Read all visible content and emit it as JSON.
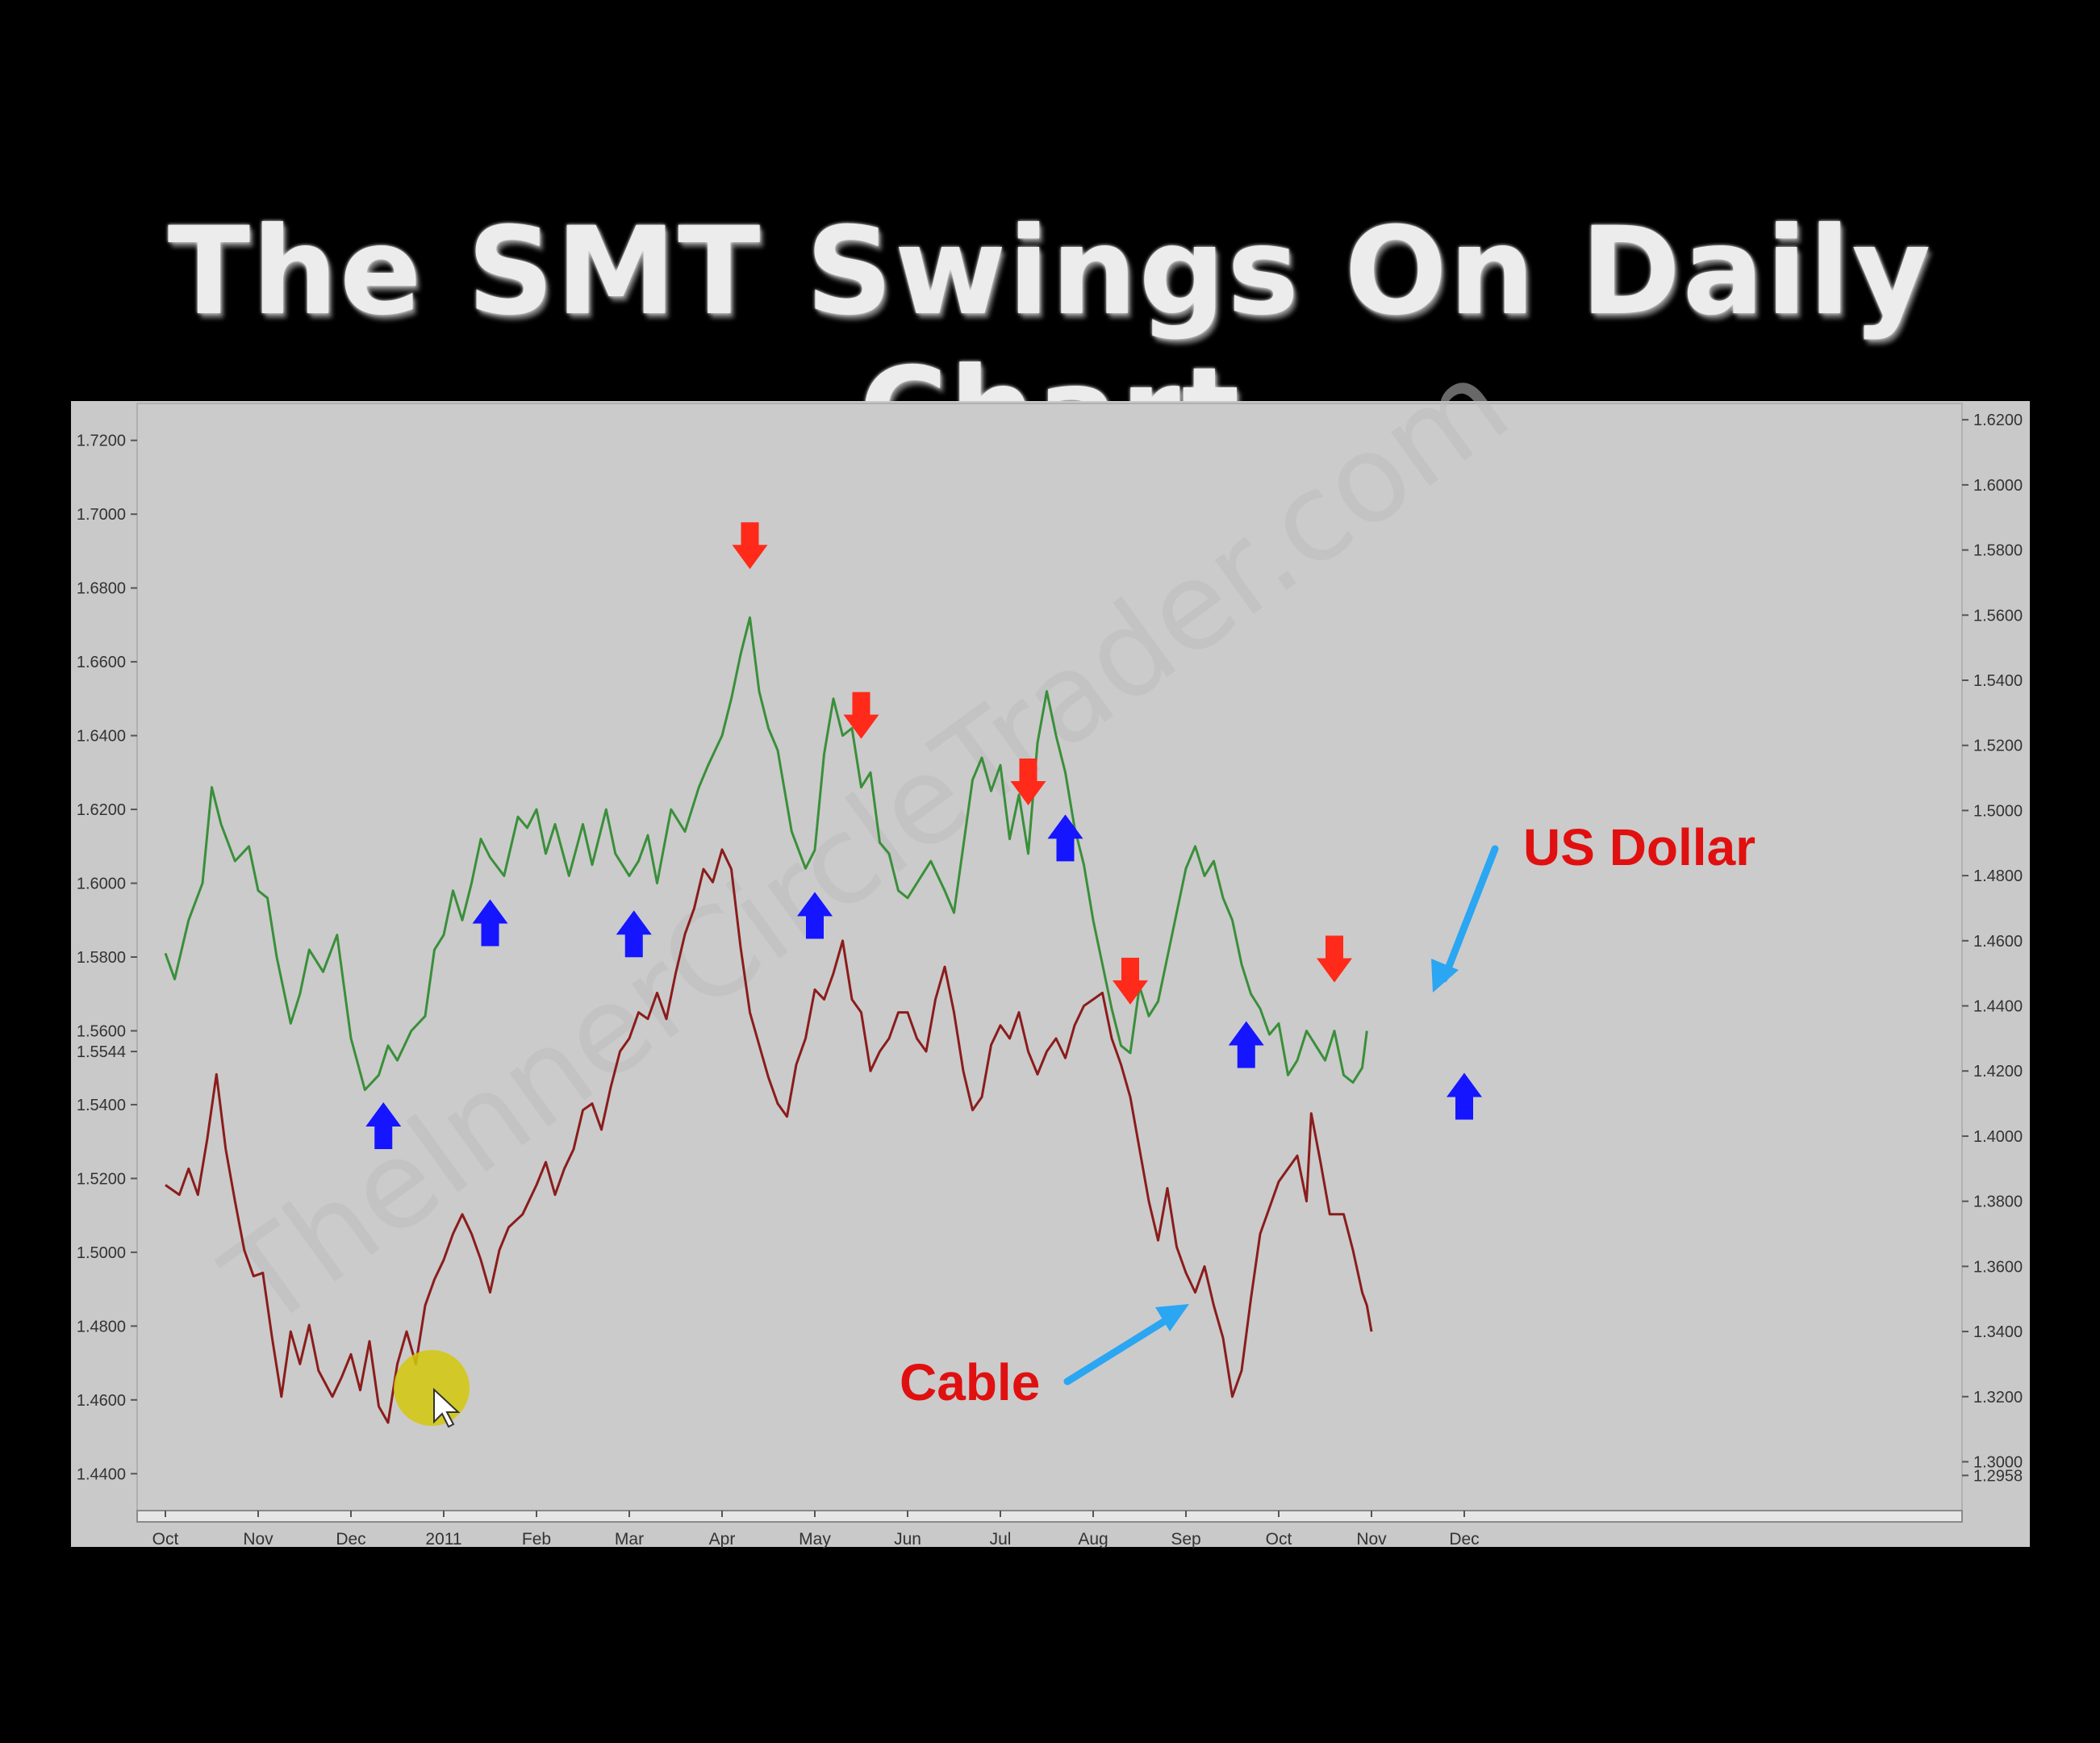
{
  "slide": {
    "title": "The SMT Swings On Daily Chart",
    "watermark": "TheInnerCircleTrader.com"
  },
  "colors": {
    "background": "#000000",
    "panel": "#c9c9c9",
    "usd_line": "#3a8f3a",
    "cable_line": "#8b1c1c",
    "down_arrow": "#ff2a1a",
    "up_arrow": "#1515ff",
    "callout_arrow": "#2aa6f2",
    "callout_text": "#e01010",
    "cursor_highlight": "#d4c80a"
  },
  "chart_data": {
    "type": "line",
    "x_tick_labels": [
      "Oct",
      "Nov",
      "Dec",
      "2011",
      "Feb",
      "Mar",
      "Apr",
      "May",
      "Jun",
      "Jul",
      "Aug",
      "Sep",
      "Oct",
      "Nov",
      "Dec"
    ],
    "left_axis": {
      "ylim": [
        1.43,
        1.73
      ],
      "ticks": [
        "1.7200",
        "1.7000",
        "1.6800",
        "1.6600",
        "1.6400",
        "1.6200",
        "1.6000",
        "1.5800",
        "1.5600",
        "1.5544",
        "1.5400",
        "1.5200",
        "1.5000",
        "1.4800",
        "1.4600",
        "1.4400"
      ]
    },
    "right_axis": {
      "ylim": [
        1.285,
        1.625
      ],
      "ticks": [
        "1.6200",
        "1.6000",
        "1.5800",
        "1.5600",
        "1.5400",
        "1.5200",
        "1.5000",
        "1.4800",
        "1.4600",
        "1.4400",
        "1.4200",
        "1.4000",
        "1.3800",
        "1.3600",
        "1.3400",
        "1.3200",
        "1.3000",
        "1.2958"
      ]
    },
    "series": [
      {
        "name": "US Dollar",
        "axis": "left",
        "color": "#3a8f3a",
        "points": [
          [
            0,
            1.581
          ],
          [
            0.1,
            1.574
          ],
          [
            0.25,
            1.59
          ],
          [
            0.4,
            1.6
          ],
          [
            0.5,
            1.626
          ],
          [
            0.6,
            1.616
          ],
          [
            0.75,
            1.606
          ],
          [
            0.9,
            1.61
          ],
          [
            1.0,
            1.598
          ],
          [
            1.1,
            1.596
          ],
          [
            1.2,
            1.58
          ],
          [
            1.35,
            1.562
          ],
          [
            1.45,
            1.57
          ],
          [
            1.55,
            1.582
          ],
          [
            1.7,
            1.576
          ],
          [
            1.85,
            1.586
          ],
          [
            2.0,
            1.558
          ],
          [
            2.15,
            1.544
          ],
          [
            2.3,
            1.548
          ],
          [
            2.4,
            1.556
          ],
          [
            2.5,
            1.552
          ],
          [
            2.65,
            1.56
          ],
          [
            2.8,
            1.564
          ],
          [
            2.9,
            1.582
          ],
          [
            3.0,
            1.586
          ],
          [
            3.1,
            1.598
          ],
          [
            3.2,
            1.59
          ],
          [
            3.3,
            1.6
          ],
          [
            3.4,
            1.612
          ],
          [
            3.5,
            1.607
          ],
          [
            3.65,
            1.602
          ],
          [
            3.8,
            1.618
          ],
          [
            3.9,
            1.615
          ],
          [
            4.0,
            1.62
          ],
          [
            4.1,
            1.608
          ],
          [
            4.2,
            1.616
          ],
          [
            4.35,
            1.602
          ],
          [
            4.5,
            1.616
          ],
          [
            4.6,
            1.605
          ],
          [
            4.75,
            1.62
          ],
          [
            4.85,
            1.608
          ],
          [
            5.0,
            1.602
          ],
          [
            5.1,
            1.606
          ],
          [
            5.2,
            1.613
          ],
          [
            5.3,
            1.6
          ],
          [
            5.45,
            1.62
          ],
          [
            5.6,
            1.614
          ],
          [
            5.75,
            1.626
          ],
          [
            5.85,
            1.632
          ],
          [
            6.0,
            1.64
          ],
          [
            6.1,
            1.65
          ],
          [
            6.2,
            1.662
          ],
          [
            6.3,
            1.672
          ],
          [
            6.4,
            1.652
          ],
          [
            6.5,
            1.642
          ],
          [
            6.6,
            1.636
          ],
          [
            6.75,
            1.614
          ],
          [
            6.9,
            1.604
          ],
          [
            7.0,
            1.609
          ],
          [
            7.1,
            1.635
          ],
          [
            7.2,
            1.65
          ],
          [
            7.3,
            1.64
          ],
          [
            7.4,
            1.642
          ],
          [
            7.5,
            1.626
          ],
          [
            7.6,
            1.63
          ],
          [
            7.7,
            1.611
          ],
          [
            7.8,
            1.608
          ],
          [
            7.9,
            1.598
          ],
          [
            8.0,
            1.596
          ],
          [
            8.1,
            1.6
          ],
          [
            8.25,
            1.606
          ],
          [
            8.4,
            1.598
          ],
          [
            8.5,
            1.592
          ],
          [
            8.6,
            1.61
          ],
          [
            8.7,
            1.628
          ],
          [
            8.8,
            1.634
          ],
          [
            8.9,
            1.625
          ],
          [
            9.0,
            1.632
          ],
          [
            9.1,
            1.612
          ],
          [
            9.2,
            1.624
          ],
          [
            9.3,
            1.608
          ],
          [
            9.4,
            1.638
          ],
          [
            9.5,
            1.652
          ],
          [
            9.6,
            1.64
          ],
          [
            9.7,
            1.63
          ],
          [
            9.8,
            1.615
          ],
          [
            9.9,
            1.605
          ],
          [
            10.0,
            1.59
          ],
          [
            10.1,
            1.578
          ],
          [
            10.2,
            1.566
          ],
          [
            10.3,
            1.556
          ],
          [
            10.4,
            1.554
          ],
          [
            10.5,
            1.572
          ],
          [
            10.6,
            1.564
          ],
          [
            10.7,
            1.568
          ],
          [
            10.8,
            1.58
          ],
          [
            10.9,
            1.592
          ],
          [
            11.0,
            1.604
          ],
          [
            11.1,
            1.61
          ],
          [
            11.2,
            1.602
          ],
          [
            11.3,
            1.606
          ],
          [
            11.4,
            1.596
          ],
          [
            11.5,
            1.59
          ],
          [
            11.6,
            1.578
          ],
          [
            11.7,
            1.57
          ],
          [
            11.8,
            1.566
          ],
          [
            11.9,
            1.559
          ],
          [
            12.0,
            1.562
          ],
          [
            12.1,
            1.548
          ],
          [
            12.2,
            1.552
          ],
          [
            12.3,
            1.56
          ],
          [
            12.4,
            1.556
          ],
          [
            12.5,
            1.552
          ],
          [
            12.6,
            1.56
          ],
          [
            12.7,
            1.548
          ],
          [
            12.8,
            1.546
          ],
          [
            12.9,
            1.55
          ],
          [
            12.95,
            1.56
          ]
        ]
      },
      {
        "name": "Cable",
        "axis": "right",
        "color": "#8b1c1c",
        "points": [
          [
            0,
            1.385
          ],
          [
            0.15,
            1.382
          ],
          [
            0.25,
            1.39
          ],
          [
            0.35,
            1.382
          ],
          [
            0.45,
            1.399
          ],
          [
            0.55,
            1.419
          ],
          [
            0.65,
            1.396
          ],
          [
            0.75,
            1.38
          ],
          [
            0.85,
            1.365
          ],
          [
            0.95,
            1.357
          ],
          [
            1.05,
            1.358
          ],
          [
            1.15,
            1.338
          ],
          [
            1.25,
            1.32
          ],
          [
            1.35,
            1.34
          ],
          [
            1.45,
            1.33
          ],
          [
            1.55,
            1.342
          ],
          [
            1.65,
            1.328
          ],
          [
            1.8,
            1.32
          ],
          [
            1.9,
            1.326
          ],
          [
            2.0,
            1.333
          ],
          [
            2.1,
            1.322
          ],
          [
            2.2,
            1.337
          ],
          [
            2.3,
            1.317
          ],
          [
            2.4,
            1.312
          ],
          [
            2.5,
            1.33
          ],
          [
            2.6,
            1.34
          ],
          [
            2.7,
            1.33
          ],
          [
            2.8,
            1.348
          ],
          [
            2.9,
            1.356
          ],
          [
            3.0,
            1.362
          ],
          [
            3.1,
            1.37
          ],
          [
            3.2,
            1.376
          ],
          [
            3.3,
            1.37
          ],
          [
            3.4,
            1.362
          ],
          [
            3.5,
            1.352
          ],
          [
            3.6,
            1.365
          ],
          [
            3.7,
            1.372
          ],
          [
            3.85,
            1.376
          ],
          [
            4.0,
            1.385
          ],
          [
            4.1,
            1.392
          ],
          [
            4.2,
            1.382
          ],
          [
            4.3,
            1.39
          ],
          [
            4.4,
            1.396
          ],
          [
            4.5,
            1.408
          ],
          [
            4.6,
            1.41
          ],
          [
            4.7,
            1.402
          ],
          [
            4.8,
            1.415
          ],
          [
            4.9,
            1.426
          ],
          [
            5.0,
            1.43
          ],
          [
            5.1,
            1.438
          ],
          [
            5.2,
            1.436
          ],
          [
            5.3,
            1.444
          ],
          [
            5.4,
            1.436
          ],
          [
            5.5,
            1.45
          ],
          [
            5.6,
            1.462
          ],
          [
            5.7,
            1.47
          ],
          [
            5.8,
            1.482
          ],
          [
            5.9,
            1.478
          ],
          [
            6.0,
            1.488
          ],
          [
            6.1,
            1.482
          ],
          [
            6.2,
            1.458
          ],
          [
            6.3,
            1.438
          ],
          [
            6.4,
            1.428
          ],
          [
            6.5,
            1.418
          ],
          [
            6.6,
            1.41
          ],
          [
            6.7,
            1.406
          ],
          [
            6.8,
            1.422
          ],
          [
            6.9,
            1.43
          ],
          [
            7.0,
            1.445
          ],
          [
            7.1,
            1.442
          ],
          [
            7.2,
            1.45
          ],
          [
            7.3,
            1.46
          ],
          [
            7.4,
            1.442
          ],
          [
            7.5,
            1.438
          ],
          [
            7.6,
            1.42
          ],
          [
            7.7,
            1.426
          ],
          [
            7.8,
            1.43
          ],
          [
            7.9,
            1.438
          ],
          [
            8.0,
            1.438
          ],
          [
            8.1,
            1.43
          ],
          [
            8.2,
            1.426
          ],
          [
            8.3,
            1.442
          ],
          [
            8.4,
            1.452
          ],
          [
            8.5,
            1.438
          ],
          [
            8.6,
            1.42
          ],
          [
            8.7,
            1.408
          ],
          [
            8.8,
            1.412
          ],
          [
            8.9,
            1.428
          ],
          [
            9.0,
            1.434
          ],
          [
            9.1,
            1.43
          ],
          [
            9.2,
            1.438
          ],
          [
            9.3,
            1.426
          ],
          [
            9.4,
            1.419
          ],
          [
            9.5,
            1.426
          ],
          [
            9.6,
            1.43
          ],
          [
            9.7,
            1.424
          ],
          [
            9.8,
            1.434
          ],
          [
            9.9,
            1.44
          ],
          [
            10.0,
            1.442
          ],
          [
            10.1,
            1.444
          ],
          [
            10.2,
            1.43
          ],
          [
            10.3,
            1.422
          ],
          [
            10.4,
            1.412
          ],
          [
            10.5,
            1.396
          ],
          [
            10.6,
            1.38
          ],
          [
            10.7,
            1.368
          ],
          [
            10.8,
            1.384
          ],
          [
            10.9,
            1.366
          ],
          [
            11.0,
            1.358
          ],
          [
            11.1,
            1.352
          ],
          [
            11.2,
            1.36
          ],
          [
            11.3,
            1.348
          ],
          [
            11.4,
            1.338
          ],
          [
            11.5,
            1.32
          ],
          [
            11.6,
            1.328
          ],
          [
            11.7,
            1.35
          ],
          [
            11.8,
            1.37
          ],
          [
            11.9,
            1.378
          ],
          [
            12.0,
            1.386
          ],
          [
            12.1,
            1.39
          ],
          [
            12.2,
            1.394
          ],
          [
            12.3,
            1.38
          ],
          [
            12.35,
            1.407
          ],
          [
            12.45,
            1.392
          ],
          [
            12.55,
            1.376
          ],
          [
            12.7,
            1.376
          ],
          [
            12.8,
            1.365
          ],
          [
            12.9,
            1.352
          ],
          [
            12.95,
            1.348
          ],
          [
            13.0,
            1.34
          ]
        ]
      }
    ],
    "down_arrows_x": [
      6.3,
      7.5,
      9.3,
      10.4,
      12.6
    ],
    "up_arrows_x": [
      2.35,
      3.5,
      5.05,
      7.0,
      9.7,
      11.65,
      14.0
    ],
    "annotations": [
      "US Dollar",
      "Cable"
    ]
  },
  "callouts": {
    "usd_label": "US Dollar",
    "cable_label": "Cable"
  }
}
